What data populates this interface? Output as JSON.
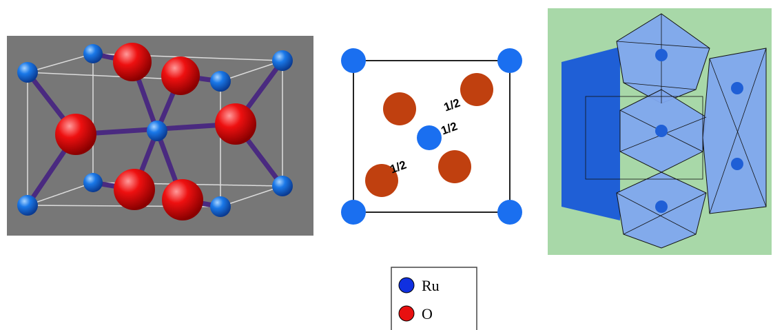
{
  "labels": [
    "1/2",
    "1/2",
    "1/2"
  ],
  "legend": [
    {
      "label": "Ru"
    },
    {
      "label": "O"
    }
  ]
}
